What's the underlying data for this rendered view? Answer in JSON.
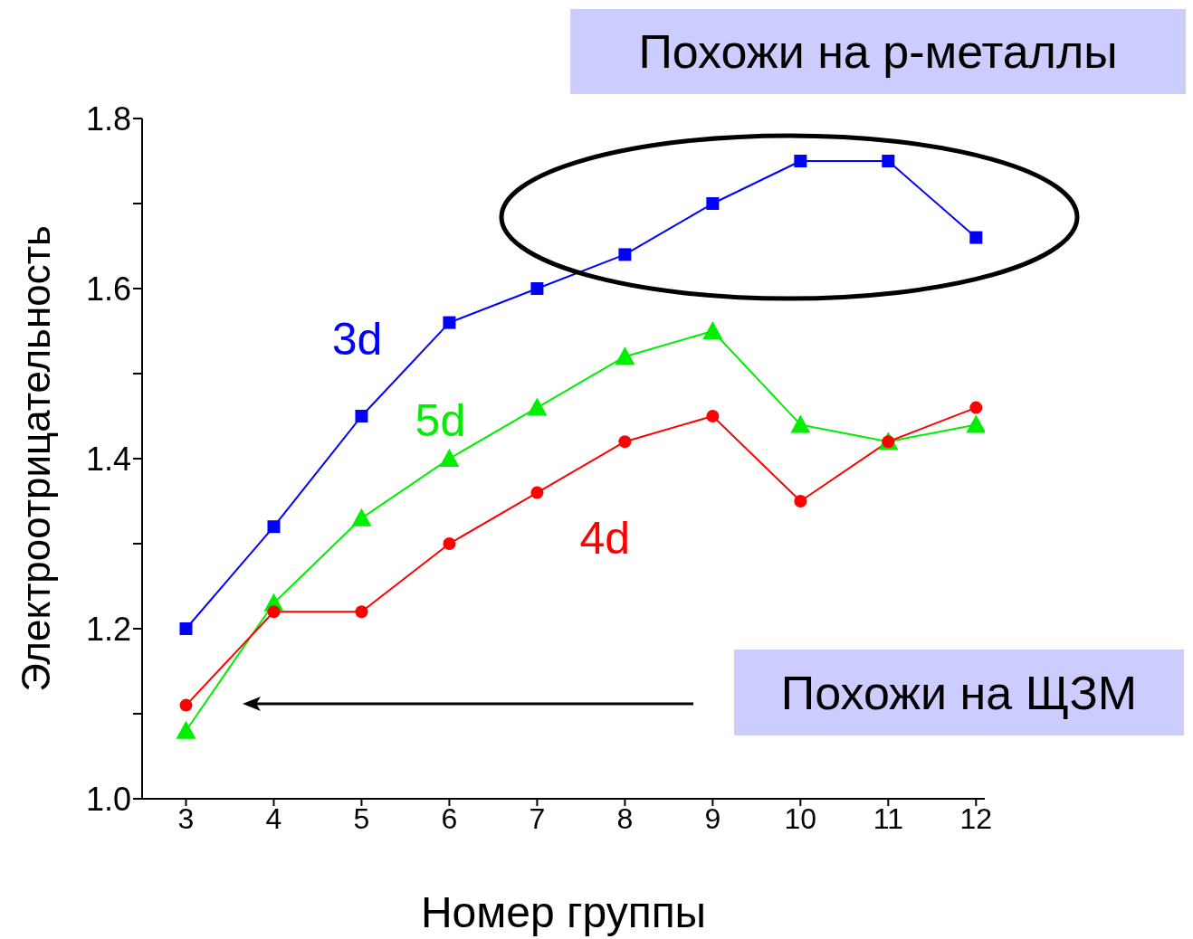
{
  "chart_data": {
    "type": "line",
    "xlabel": "Номер группы",
    "ylabel": "Электроотрицательность",
    "x": [
      3,
      4,
      5,
      6,
      7,
      8,
      9,
      10,
      11,
      12
    ],
    "series": [
      {
        "name": "3d",
        "color": "#0000ff",
        "marker": "square",
        "values": [
          1.2,
          1.32,
          1.45,
          1.56,
          1.6,
          1.64,
          1.7,
          1.75,
          1.75,
          1.66
        ]
      },
      {
        "name": "5d",
        "color": "#00ee00",
        "marker": "triangle",
        "values": [
          1.08,
          1.23,
          1.33,
          1.4,
          1.46,
          1.52,
          1.55,
          1.44,
          1.42,
          1.44
        ]
      },
      {
        "name": "4d",
        "color": "#ff0000",
        "marker": "circle",
        "values": [
          1.11,
          1.22,
          1.22,
          1.3,
          1.36,
          1.42,
          1.45,
          1.35,
          1.42,
          1.46
        ]
      }
    ],
    "xlim": [
      2.5,
      12.1
    ],
    "xticks": [
      3,
      4,
      5,
      6,
      7,
      8,
      9,
      10,
      11,
      12
    ],
    "ylim": [
      1.0,
      1.8
    ],
    "yticks": [
      {
        "value": 1.0,
        "label": "1.0"
      },
      {
        "value": 1.1,
        "label": null
      },
      {
        "value": 1.2,
        "label": "1.2"
      },
      {
        "value": 1.3,
        "label": null
      },
      {
        "value": 1.4,
        "label": "1.4"
      },
      {
        "value": 1.5,
        "label": null
      },
      {
        "value": 1.6,
        "label": "1.6"
      },
      {
        "value": 1.7,
        "label": null
      },
      {
        "value": 1.8,
        "label": "1.8"
      }
    ],
    "annotations": [
      "Похожи на p-металлы",
      "Похожи на ЩЗМ"
    ],
    "line_style": "solid"
  }
}
